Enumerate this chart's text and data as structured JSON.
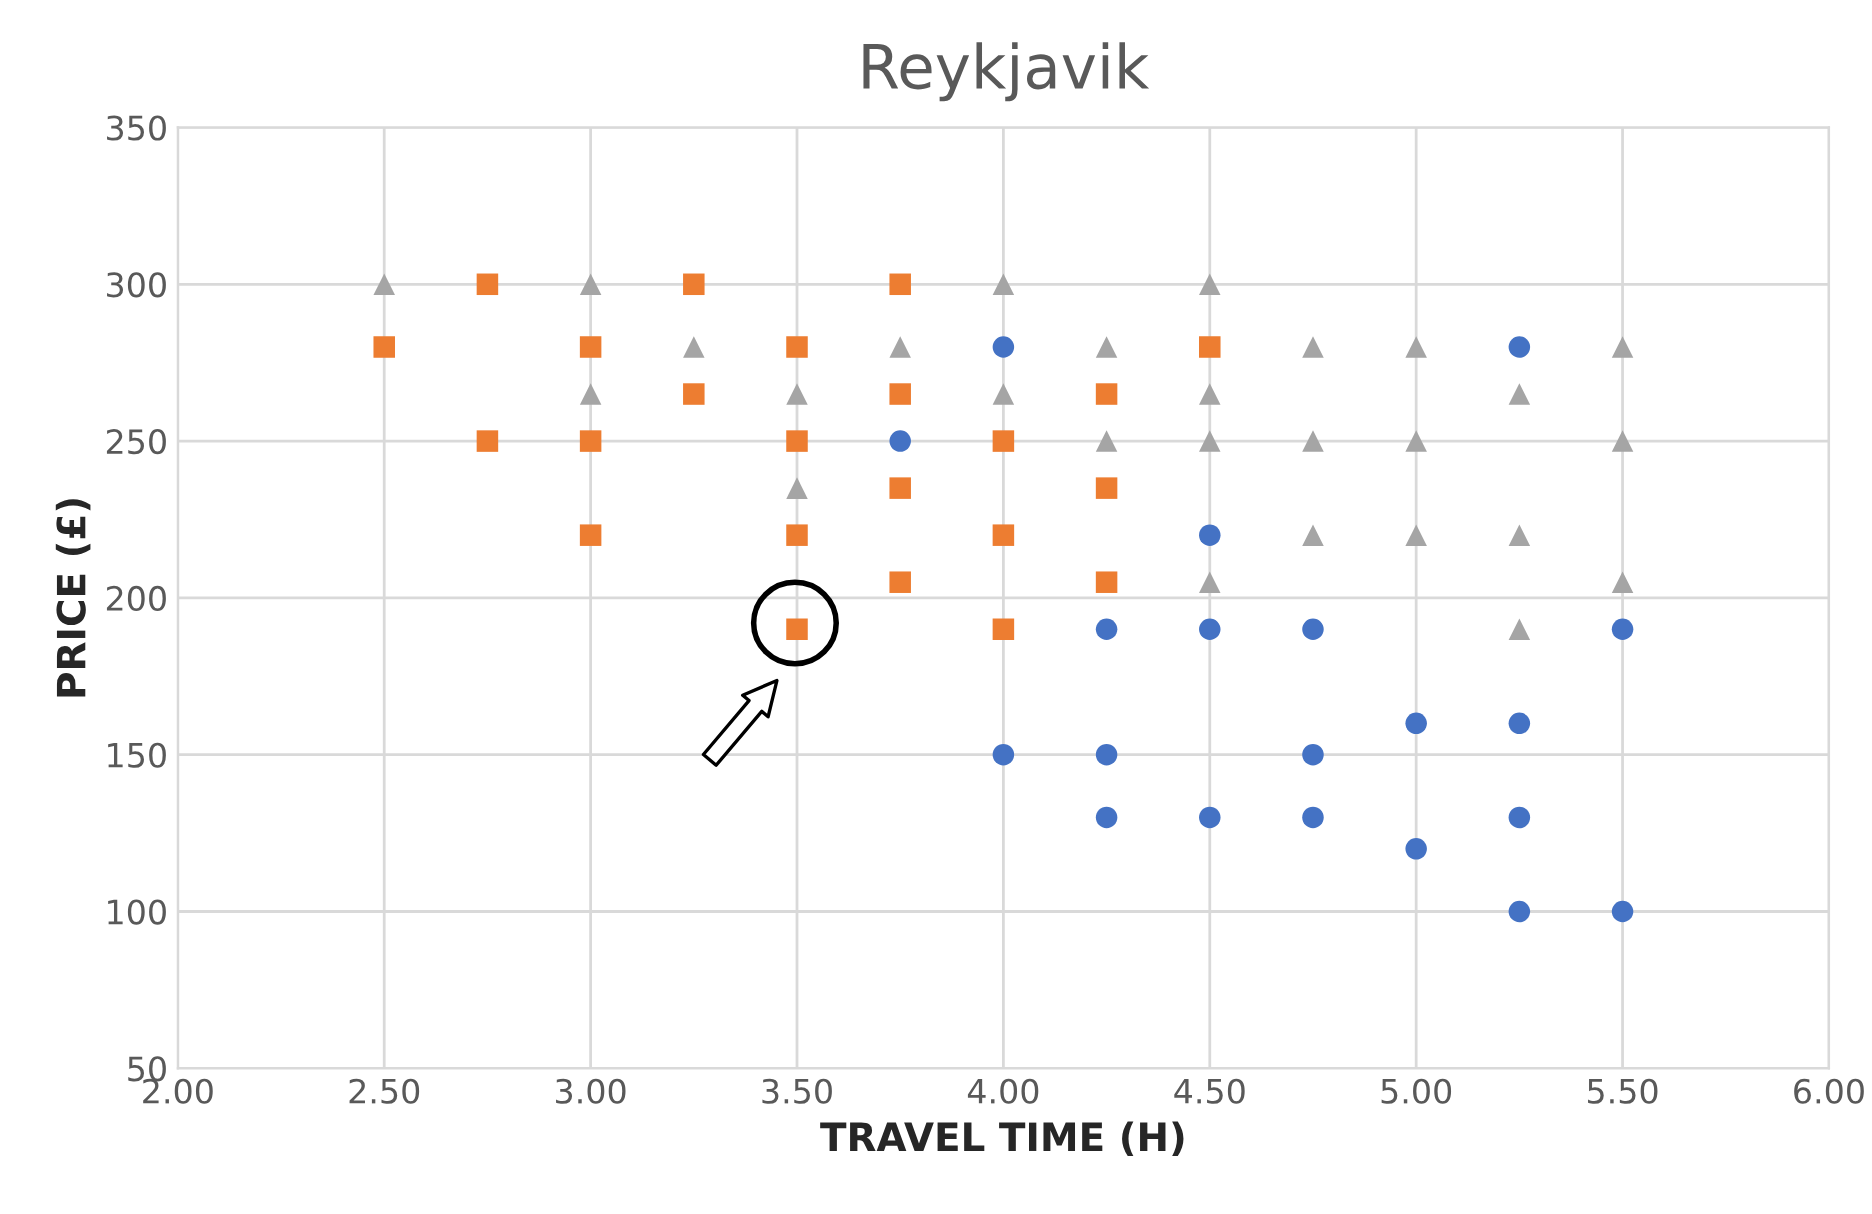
{
  "chart_data": {
    "type": "scatter",
    "title": "Reykjavik",
    "xlabel": "TRAVEL TIME (H)",
    "ylabel": "PRICE (£)",
    "xlim": [
      2.0,
      6.0
    ],
    "xticks": [
      {
        "value": 2.0,
        "label": "2.00"
      },
      {
        "value": 2.5,
        "label": "2.50"
      },
      {
        "value": 3.0,
        "label": "3.00"
      },
      {
        "value": 3.5,
        "label": "3.50"
      },
      {
        "value": 4.0,
        "label": "4.00"
      },
      {
        "value": 4.5,
        "label": "4.50"
      },
      {
        "value": 5.0,
        "label": "5.00"
      },
      {
        "value": 5.5,
        "label": "5.50"
      },
      {
        "value": 6.0,
        "label": "6.00"
      }
    ],
    "ylim": [
      50,
      350
    ],
    "yticks": [
      50,
      100,
      150,
      200,
      250,
      300,
      350
    ],
    "grid": true,
    "legend": false,
    "series": [
      {
        "color": "#4472c4",
        "marker": "circle",
        "x": [
          3.75,
          4.0,
          4.0,
          4.25,
          4.25,
          4.25,
          4.5,
          4.5,
          4.5,
          4.75,
          4.75,
          4.75,
          5.0,
          5.0,
          5.25,
          5.25,
          5.25,
          5.25,
          5.5,
          5.5
        ],
        "values": [
          250,
          280,
          150,
          190,
          150,
          130,
          220,
          190,
          130,
          190,
          150,
          130,
          160,
          120,
          280,
          160,
          130,
          100,
          190,
          100
        ]
      },
      {
        "color": "#ed7d31",
        "marker": "square",
        "x": [
          2.5,
          2.75,
          2.75,
          3.0,
          3.0,
          3.0,
          3.25,
          3.25,
          3.5,
          3.5,
          3.5,
          3.5,
          3.75,
          3.75,
          3.75,
          3.75,
          4.0,
          4.0,
          4.0,
          4.25,
          4.25,
          4.25,
          4.5
        ],
        "values": [
          280,
          300,
          250,
          280,
          250,
          220,
          300,
          265,
          280,
          250,
          220,
          190,
          300,
          265,
          235,
          205,
          250,
          220,
          190,
          265,
          235,
          205,
          280
        ]
      },
      {
        "color": "#a5a5a5",
        "marker": "triangle",
        "x": [
          2.5,
          3.0,
          3.0,
          3.25,
          3.5,
          3.5,
          3.75,
          4.0,
          4.0,
          4.25,
          4.25,
          4.5,
          4.5,
          4.5,
          4.5,
          4.75,
          4.75,
          4.75,
          5.0,
          5.0,
          5.0,
          5.25,
          5.25,
          5.25,
          5.5,
          5.5,
          5.5
        ],
        "values": [
          300,
          300,
          265,
          280,
          265,
          235,
          280,
          300,
          265,
          280,
          250,
          300,
          265,
          250,
          205,
          280,
          250,
          220,
          280,
          250,
          220,
          265,
          220,
          190,
          280,
          250,
          205
        ]
      }
    ]
  }
}
